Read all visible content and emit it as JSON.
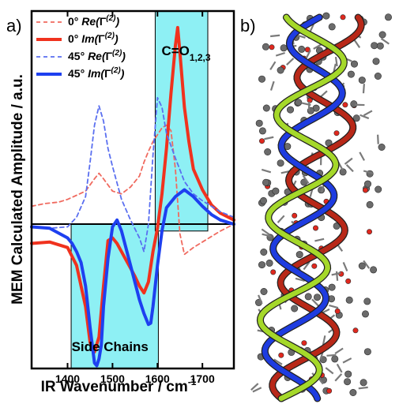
{
  "panels": {
    "a": "a)",
    "b": "b)"
  },
  "chart_data": {
    "type": "line",
    "xlabel": "IR Wavenumber / cm",
    "xlabel_sup": "-1",
    "ylabel": "MEM Calculated Amplitude / a.u.",
    "xlim": [
      1320,
      1770
    ],
    "ylim": [
      -1.05,
      1.55
    ],
    "xticks": [
      1400,
      1500,
      1600,
      1700
    ],
    "grid": false,
    "legend_position": "top-left",
    "regions": [
      {
        "name": "Side Chains",
        "x": [
          1408,
          1602
        ],
        "y": [
          -1.05,
          0
        ],
        "color": "#8ef0f4"
      },
      {
        "name": "C=O",
        "sub": "1,2,3",
        "x": [
          1595,
          1712
        ],
        "y": [
          -0.05,
          1.55
        ],
        "color": "#8ef0f4"
      }
    ],
    "series": [
      {
        "angle": "0°",
        "name_pre": "Re(",
        "name_main": "Γ",
        "name_sup": "(2)",
        "name_post": ")",
        "color": "#f06a5f",
        "dash": true,
        "width": 1.8,
        "x": [
          1320,
          1350,
          1380,
          1400,
          1420,
          1440,
          1460,
          1470,
          1480,
          1500,
          1520,
          1540,
          1560,
          1570,
          1580,
          1590,
          1600,
          1610,
          1620,
          1630,
          1640,
          1650,
          1660,
          1680,
          1700,
          1720,
          1740,
          1770
        ],
        "y": [
          0.13,
          0.15,
          0.16,
          0.18,
          0.21,
          0.24,
          0.33,
          0.37,
          0.33,
          0.24,
          0.22,
          0.27,
          0.35,
          0.45,
          0.53,
          0.6,
          0.65,
          0.7,
          0.72,
          0.68,
          0.4,
          -0.07,
          -0.22,
          -0.17,
          -0.13,
          -0.09,
          -0.05,
          0.0
        ]
      },
      {
        "angle": "0°",
        "name_pre": "Im(",
        "name_main": "Γ",
        "name_sup": "(2)",
        "name_post": ")",
        "color": "#f0321e",
        "dash": false,
        "width": 4,
        "x": [
          1320,
          1360,
          1400,
          1420,
          1440,
          1450,
          1460,
          1470,
          1480,
          1490,
          1500,
          1510,
          1520,
          1530,
          1540,
          1550,
          1560,
          1570,
          1580,
          1590,
          1600,
          1610,
          1620,
          1630,
          1640,
          1645,
          1650,
          1660,
          1670,
          1680,
          1700,
          1720,
          1740,
          1770
        ],
        "y": [
          -0.14,
          -0.13,
          -0.17,
          -0.3,
          -0.6,
          -0.86,
          -0.93,
          -0.82,
          -0.45,
          -0.12,
          -0.1,
          -0.14,
          -0.2,
          -0.26,
          -0.32,
          -0.38,
          -0.45,
          -0.5,
          -0.42,
          -0.2,
          -0.03,
          0.22,
          0.55,
          0.95,
          1.3,
          1.43,
          1.25,
          0.85,
          0.6,
          0.4,
          0.25,
          0.14,
          0.08,
          0.03
        ]
      },
      {
        "angle": "45°",
        "name_pre": "Re(",
        "name_main": "Γ",
        "name_sup": "(2)",
        "name_post": ")",
        "color": "#5a6ff0",
        "dash": true,
        "width": 1.8,
        "x": [
          1320,
          1360,
          1400,
          1420,
          1440,
          1450,
          1460,
          1470,
          1480,
          1490,
          1500,
          1510,
          1520,
          1540,
          1560,
          1570,
          1580,
          1590,
          1600,
          1610,
          1620,
          1640,
          1660,
          1680,
          1700,
          1720,
          1740,
          1770
        ],
        "y": [
          -0.02,
          -0.03,
          -0.02,
          0.05,
          0.2,
          0.45,
          0.72,
          0.86,
          0.75,
          0.55,
          0.42,
          0.3,
          0.18,
          0.03,
          -0.1,
          -0.2,
          0.0,
          0.5,
          0.92,
          0.85,
          0.66,
          0.48,
          0.31,
          0.22,
          0.17,
          0.13,
          0.09,
          0.05
        ]
      },
      {
        "angle": "45°",
        "name_pre": "Im(",
        "name_main": "Γ",
        "name_sup": "(2)",
        "name_post": ")",
        "color": "#1e40f0",
        "dash": false,
        "width": 4,
        "x": [
          1320,
          1360,
          1400,
          1410,
          1420,
          1430,
          1440,
          1450,
          1460,
          1465,
          1470,
          1475,
          1480,
          1490,
          1500,
          1510,
          1520,
          1540,
          1560,
          1570,
          1580,
          1585,
          1590,
          1600,
          1610,
          1620,
          1640,
          1660,
          1680,
          1700,
          1720,
          1740,
          1770
        ],
        "y": [
          -0.02,
          -0.03,
          -0.1,
          -0.14,
          -0.2,
          -0.28,
          -0.45,
          -0.75,
          -1.01,
          -1.03,
          -0.98,
          -0.88,
          -0.6,
          -0.25,
          -0.02,
          0.03,
          -0.05,
          -0.3,
          -0.55,
          -0.65,
          -0.73,
          -0.72,
          -0.6,
          -0.3,
          -0.05,
          0.12,
          0.2,
          0.25,
          0.2,
          0.13,
          0.07,
          0.03,
          0.0
        ]
      }
    ]
  }
}
